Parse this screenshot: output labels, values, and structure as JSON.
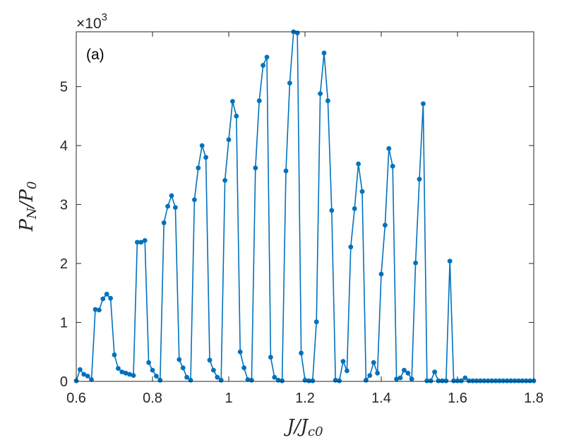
{
  "chart_data": {
    "type": "line",
    "panel_label": "(a)",
    "xlabel_main": "J/J",
    "xlabel_sub": "c0",
    "ylabel_main": "P",
    "ylabel_sub_1": "N",
    "ylabel_mid": "/P",
    "ylabel_sub_2": "0",
    "y_multiplier_base": "×10",
    "y_multiplier_exp": "3",
    "xlim": [
      0.6,
      1.8
    ],
    "ylim": [
      0,
      5.93
    ],
    "x_ticks": [
      "0.6",
      "0.8",
      "1",
      "1.2",
      "1.4",
      "1.6",
      "1.8"
    ],
    "y_ticks": [
      "0",
      "1",
      "2",
      "3",
      "4",
      "5"
    ],
    "grid": false,
    "series": [
      {
        "color": "#0072BD",
        "marker": "filled-circle",
        "x": [
          0.6,
          0.61,
          0.62,
          0.63,
          0.64,
          0.65,
          0.66,
          0.67,
          0.68,
          0.69,
          0.7,
          0.71,
          0.72,
          0.73,
          0.74,
          0.75,
          0.76,
          0.77,
          0.78,
          0.79,
          0.8,
          0.81,
          0.82,
          0.83,
          0.84,
          0.85,
          0.86,
          0.87,
          0.88,
          0.89,
          0.9,
          0.91,
          0.92,
          0.93,
          0.94,
          0.95,
          0.96,
          0.97,
          0.98,
          0.99,
          1.0,
          1.01,
          1.02,
          1.03,
          1.04,
          1.05,
          1.06,
          1.07,
          1.08,
          1.09,
          1.1,
          1.11,
          1.12,
          1.13,
          1.14,
          1.15,
          1.16,
          1.17,
          1.18,
          1.19,
          1.2,
          1.21,
          1.22,
          1.23,
          1.24,
          1.25,
          1.26,
          1.27,
          1.28,
          1.29,
          1.3,
          1.31,
          1.32,
          1.33,
          1.34,
          1.35,
          1.36,
          1.37,
          1.38,
          1.39,
          1.4,
          1.41,
          1.42,
          1.43,
          1.44,
          1.45,
          1.46,
          1.47,
          1.48,
          1.49,
          1.5,
          1.51,
          1.52,
          1.53,
          1.54,
          1.55,
          1.56,
          1.57,
          1.58,
          1.59,
          1.6,
          1.61,
          1.62,
          1.63,
          1.64,
          1.65,
          1.66,
          1.67,
          1.68,
          1.69,
          1.7,
          1.71,
          1.72,
          1.73,
          1.74,
          1.75,
          1.76,
          1.77,
          1.78,
          1.79,
          1.8
        ],
        "y": [
          0.01,
          0.2,
          0.12,
          0.09,
          0.03,
          1.22,
          1.21,
          1.4,
          1.48,
          1.41,
          0.45,
          0.22,
          0.16,
          0.14,
          0.12,
          0.1,
          2.36,
          2.36,
          2.39,
          0.32,
          0.19,
          0.09,
          0.02,
          2.69,
          2.97,
          3.15,
          2.95,
          0.37,
          0.23,
          0.07,
          0.02,
          3.08,
          3.62,
          4.0,
          3.8,
          0.36,
          0.19,
          0.07,
          0.02,
          3.41,
          4.1,
          4.75,
          4.5,
          0.5,
          0.23,
          0.03,
          0.02,
          3.62,
          4.76,
          5.36,
          5.5,
          0.41,
          0.07,
          0.02,
          0.01,
          3.57,
          5.06,
          5.93,
          5.91,
          0.48,
          0.02,
          0.01,
          0.01,
          1.01,
          4.88,
          5.57,
          4.76,
          2.9,
          0.02,
          0.01,
          0.34,
          0.18,
          2.28,
          2.93,
          3.69,
          3.22,
          0.02,
          0.1,
          0.32,
          0.14,
          1.82,
          2.65,
          3.95,
          3.65,
          0.04,
          0.06,
          0.19,
          0.14,
          0.04,
          2.01,
          3.43,
          4.71,
          0.01,
          0.01,
          0.16,
          0.01,
          0.01,
          0.01,
          2.04,
          0.01,
          0.01,
          0.01,
          0.06,
          0.01,
          0.01,
          0.01,
          0.01,
          0.01,
          0.01,
          0.01,
          0.01,
          0.01,
          0.01,
          0.01,
          0.01,
          0.01,
          0.01,
          0.01,
          0.01,
          0.01,
          0.01
        ]
      }
    ]
  }
}
